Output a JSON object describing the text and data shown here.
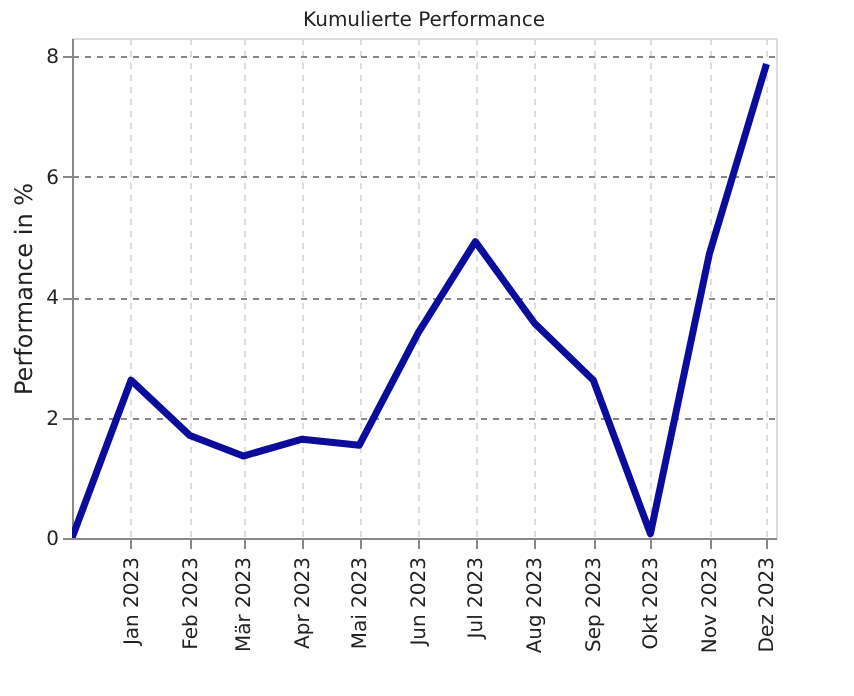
{
  "chart_data": {
    "type": "line",
    "title": "Kumulierte Performance",
    "ylabel": "Performance in %",
    "x": [
      "2022-12-01",
      "2023-01-01",
      "2023-02-01",
      "2023-03-01",
      "2023-04-01",
      "2023-05-01",
      "2023-06-01",
      "2023-07-01",
      "2023-08-01",
      "2023-09-01",
      "2023-10-01",
      "2023-11-01",
      "2023-12-01"
    ],
    "series": [
      {
        "color": "#0c0c9c",
        "values": [
          0,
          2.62,
          1.7,
          1.36,
          1.64,
          1.54,
          3.41,
          4.92,
          3.57,
          2.62,
          0.07,
          4.72,
          7.87
        ]
      }
    ],
    "xlim": [
      "2022-12-01",
      "2023-12-06"
    ],
    "xticks": [
      {
        "value": "2023-01-01",
        "label": "Jan 2023"
      },
      {
        "value": "2023-02-01",
        "label": "Feb 2023"
      },
      {
        "value": "2023-03-01",
        "label": "Mär 2023"
      },
      {
        "value": "2023-04-01",
        "label": "Apr 2023"
      },
      {
        "value": "2023-05-01",
        "label": "Mai 2023"
      },
      {
        "value": "2023-06-01",
        "label": "Jun 2023"
      },
      {
        "value": "2023-07-01",
        "label": "Jul 2023"
      },
      {
        "value": "2023-08-01",
        "label": "Aug 2023"
      },
      {
        "value": "2023-09-01",
        "label": "Sep 2023"
      },
      {
        "value": "2023-10-01",
        "label": "Okt 2023"
      },
      {
        "value": "2023-11-01",
        "label": "Nov 2023"
      },
      {
        "value": "2023-12-01",
        "label": "Dez 2023"
      }
    ],
    "ylim": [
      0,
      8.3
    ],
    "yticks": [
      0,
      2,
      4,
      6,
      8
    ],
    "grid": true,
    "marker": "none",
    "line_style": "solid"
  }
}
